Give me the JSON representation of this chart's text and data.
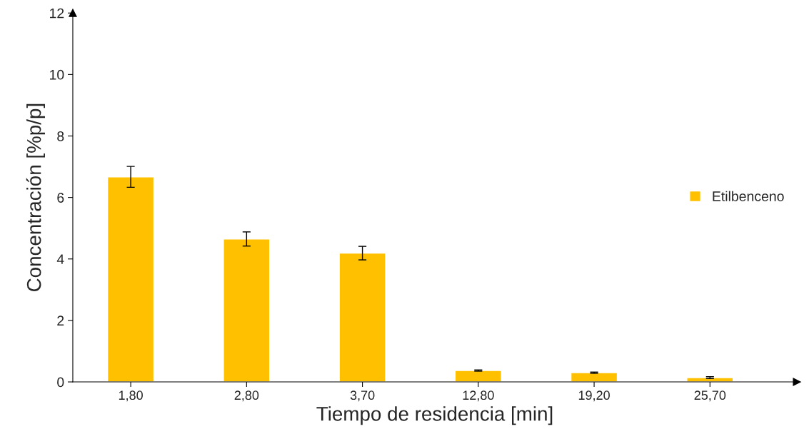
{
  "chart_data": {
    "type": "bar",
    "xlabel": "Tiempo de residencia [min]",
    "ylabel": "Concentración [%p/p]",
    "categories": [
      "1,80",
      "2,80",
      "3,70",
      "12,80",
      "19,20",
      "25,70"
    ],
    "series": [
      {
        "name": "Etilbenceno",
        "color": "#ffc000",
        "values": [
          6.67,
          4.65,
          4.19,
          0.37,
          0.3,
          0.14
        ],
        "errors": [
          0.34,
          0.23,
          0.22,
          0.02,
          0.02,
          0.03
        ]
      }
    ],
    "ylim": [
      0,
      12
    ],
    "yticks": [
      0,
      2,
      4,
      6,
      8,
      10,
      12
    ],
    "grid": false,
    "legend": "right"
  }
}
